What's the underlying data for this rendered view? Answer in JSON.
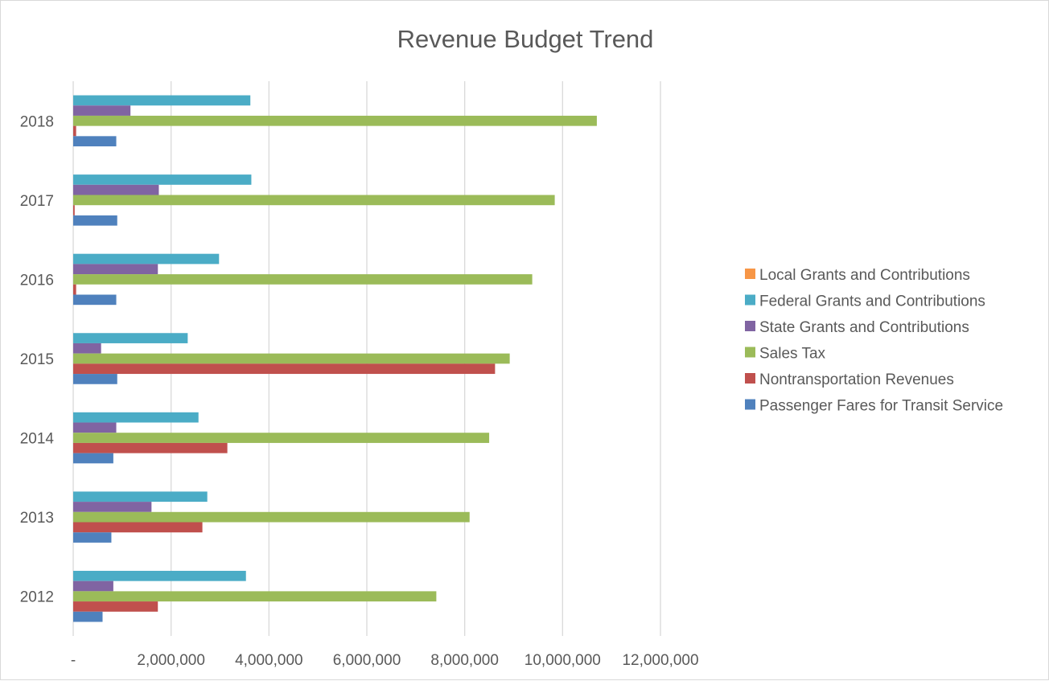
{
  "chart_data": {
    "type": "bar",
    "orientation": "horizontal",
    "title": "Revenue Budget Trend",
    "xlabel": "",
    "ylabel": "",
    "categories": [
      "2012",
      "2013",
      "2014",
      "2015",
      "2016",
      "2017",
      "2018"
    ],
    "xlim": [
      0,
      12000000
    ],
    "x_ticks": [
      0,
      2000000,
      4000000,
      6000000,
      8000000,
      10000000,
      12000000
    ],
    "x_tick_labels": [
      "-",
      "2,000,000",
      "4,000,000",
      "6,000,000",
      "8,000,000",
      "10,000,000",
      "12,000,000"
    ],
    "grid": "vertical",
    "legend_position": "right",
    "series": [
      {
        "name": "Passenger Fares for Transit Service",
        "color": "#4F81BD",
        "values": [
          600000,
          780000,
          820000,
          900000,
          880000,
          900000,
          880000
        ]
      },
      {
        "name": "Nontransportation Revenues",
        "color": "#C0504D",
        "values": [
          1730000,
          2640000,
          3150000,
          8620000,
          60000,
          30000,
          60000
        ]
      },
      {
        "name": "Sales Tax",
        "color": "#9BBB59",
        "values": [
          7420000,
          8100000,
          8500000,
          8920000,
          9380000,
          9840000,
          10700000
        ]
      },
      {
        "name": "State Grants and Contributions",
        "color": "#8064A2",
        "values": [
          820000,
          1600000,
          880000,
          570000,
          1730000,
          1750000,
          1170000
        ]
      },
      {
        "name": "Federal Grants and Contributions",
        "color": "#4BACC6",
        "values": [
          3530000,
          2740000,
          2560000,
          2340000,
          2980000,
          3640000,
          3620000
        ]
      },
      {
        "name": "Local Grants and Contributions",
        "color": "#F79646",
        "values": [
          0,
          0,
          0,
          0,
          0,
          0,
          0
        ]
      }
    ]
  }
}
